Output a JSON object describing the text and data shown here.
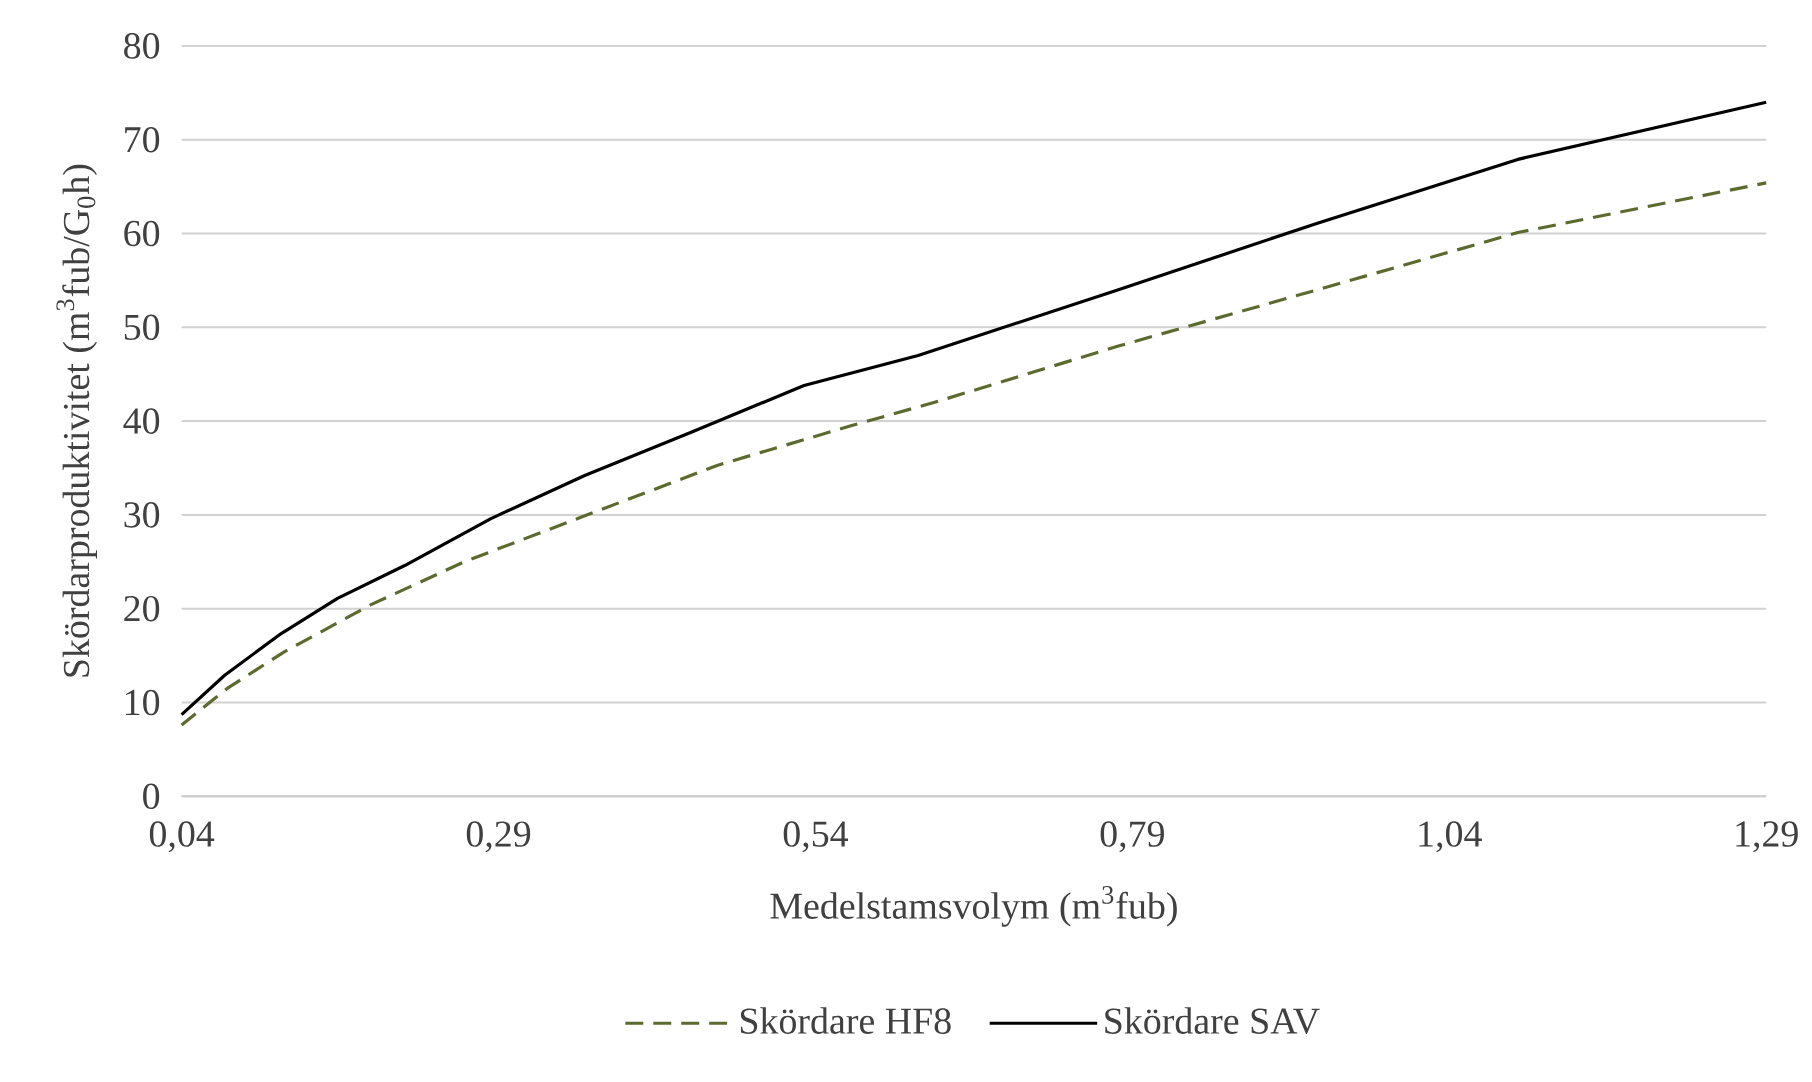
{
  "chart_data": {
    "type": "line",
    "xlabel": "Medelstamsvolym (m$^{3}$fub)",
    "ylabel": "Skördarproduktivitet (m$^{3}$fub/G$_{0}$h)",
    "xlim": [
      0.04,
      1.29
    ],
    "xticks": [
      {
        "value": 0.04,
        "label": "0,04"
      },
      {
        "value": 0.29,
        "label": "0,29"
      },
      {
        "value": 0.54,
        "label": "0,54"
      },
      {
        "value": 0.79,
        "label": "0,79"
      },
      {
        "value": 1.04,
        "label": "1,04"
      },
      {
        "value": 1.29,
        "label": "1,29"
      }
    ],
    "ylim": [
      0,
      80
    ],
    "yticks": [
      0,
      10,
      20,
      30,
      40,
      50,
      60,
      70,
      80
    ],
    "grid": "y",
    "legend": "bottom",
    "series": [
      {
        "name": "Skördare HF8",
        "color": "#5b6b2f",
        "line_style": "dashed",
        "x": [
          0.04,
          0.076,
          0.121,
          0.189,
          0.263,
          0.358,
          0.463,
          0.568,
          0.634,
          0.779,
          0.936,
          1.094,
          1.29
        ],
        "values": [
          7.6,
          11.5,
          15.4,
          20.4,
          25.0,
          29.9,
          35.3,
          39.5,
          42.0,
          48.0,
          54.0,
          60.1,
          65.4
        ]
      },
      {
        "name": "Skördare SAV",
        "color": "#000000",
        "line_style": "solid",
        "x": [
          0.04,
          0.074,
          0.117,
          0.163,
          0.216,
          0.284,
          0.358,
          0.442,
          0.531,
          0.621,
          0.779,
          0.936,
          1.094,
          1.29
        ],
        "values": [
          8.7,
          12.9,
          17.2,
          21.1,
          24.6,
          29.6,
          34.2,
          38.8,
          43.8,
          47.0,
          54.0,
          61.1,
          67.9,
          74.0
        ]
      }
    ]
  }
}
